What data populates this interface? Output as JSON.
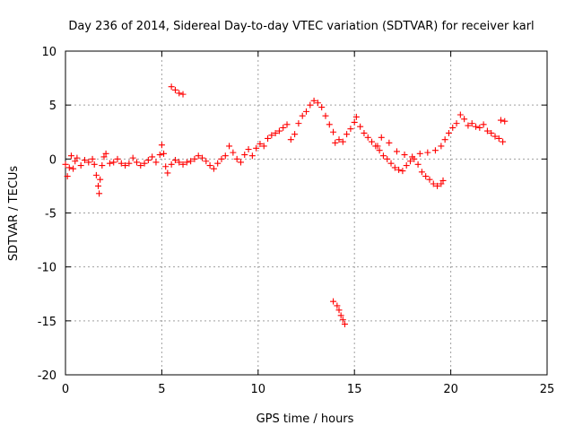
{
  "chart_data": {
    "type": "scatter",
    "title": "Day 236 of 2014, Sidereal Day-to-day VTEC variation (SDTVAR) for receiver karl",
    "xlabel": "GPS time / hours",
    "ylabel": "SDTVAR / TECUs",
    "xlim": [
      0,
      25
    ],
    "ylim": [
      -20,
      10
    ],
    "xticks": [
      0,
      5,
      10,
      15,
      20,
      25
    ],
    "yticks": [
      -20,
      -15,
      -10,
      -5,
      0,
      5,
      10
    ],
    "xtick_labels": [
      "0",
      "5",
      "10",
      "15",
      "20",
      "25"
    ],
    "ytick_labels": [
      "-20",
      "-15",
      "-10",
      "-5",
      "0",
      "5",
      "10"
    ],
    "grid": true,
    "marker": "+",
    "series": [
      {
        "name": "SDTVAR",
        "color": "#ff0000",
        "points": [
          [
            0.0,
            -0.5
          ],
          [
            0.1,
            -1.6
          ],
          [
            0.2,
            -0.8
          ],
          [
            0.3,
            0.3
          ],
          [
            0.4,
            -0.9
          ],
          [
            0.5,
            -0.2
          ],
          [
            0.6,
            0.1
          ],
          [
            0.8,
            -0.6
          ],
          [
            1.0,
            -0.1
          ],
          [
            1.2,
            -0.3
          ],
          [
            1.4,
            0.0
          ],
          [
            1.5,
            -0.5
          ],
          [
            1.6,
            -1.5
          ],
          [
            1.7,
            -2.5
          ],
          [
            1.75,
            -3.2
          ],
          [
            1.8,
            -1.9
          ],
          [
            1.9,
            -0.6
          ],
          [
            2.0,
            0.2
          ],
          [
            2.1,
            0.5
          ],
          [
            2.3,
            -0.4
          ],
          [
            2.5,
            -0.3
          ],
          [
            2.7,
            0.0
          ],
          [
            2.9,
            -0.4
          ],
          [
            3.1,
            -0.6
          ],
          [
            3.3,
            -0.4
          ],
          [
            3.5,
            0.1
          ],
          [
            3.7,
            -0.3
          ],
          [
            3.9,
            -0.6
          ],
          [
            4.1,
            -0.4
          ],
          [
            4.3,
            -0.1
          ],
          [
            4.5,
            0.2
          ],
          [
            4.7,
            -0.3
          ],
          [
            4.9,
            0.4
          ],
          [
            5.0,
            1.3
          ],
          [
            5.1,
            0.5
          ],
          [
            5.2,
            -0.7
          ],
          [
            5.3,
            -1.3
          ],
          [
            5.5,
            -0.5
          ],
          [
            5.7,
            -0.1
          ],
          [
            5.9,
            -0.3
          ],
          [
            6.1,
            -0.5
          ],
          [
            6.3,
            -0.3
          ],
          [
            6.5,
            -0.2
          ],
          [
            6.7,
            0.0
          ],
          [
            6.9,
            0.3
          ],
          [
            7.1,
            0.1
          ],
          [
            7.3,
            -0.2
          ],
          [
            7.5,
            -0.6
          ],
          [
            7.7,
            -0.9
          ],
          [
            7.9,
            -0.4
          ],
          [
            8.1,
            0.0
          ],
          [
            8.3,
            0.3
          ],
          [
            8.5,
            1.2
          ],
          [
            8.7,
            0.6
          ],
          [
            8.9,
            0.0
          ],
          [
            9.1,
            -0.3
          ],
          [
            9.3,
            0.4
          ],
          [
            9.5,
            0.9
          ],
          [
            9.7,
            0.3
          ],
          [
            9.9,
            1.0
          ],
          [
            10.1,
            1.4
          ],
          [
            10.3,
            1.2
          ],
          [
            10.5,
            1.9
          ],
          [
            10.7,
            2.2
          ],
          [
            10.9,
            2.4
          ],
          [
            11.1,
            2.6
          ],
          [
            11.3,
            2.9
          ],
          [
            11.5,
            3.2
          ],
          [
            11.7,
            1.8
          ],
          [
            11.9,
            2.3
          ],
          [
            12.1,
            3.3
          ],
          [
            12.3,
            4.0
          ],
          [
            12.5,
            4.4
          ],
          [
            12.7,
            5.0
          ],
          [
            12.9,
            5.4
          ],
          [
            13.1,
            5.2
          ],
          [
            13.3,
            4.8
          ],
          [
            13.5,
            4.0
          ],
          [
            13.7,
            3.2
          ],
          [
            13.9,
            2.5
          ],
          [
            14.0,
            1.5
          ],
          [
            14.2,
            1.8
          ],
          [
            14.4,
            1.6
          ],
          [
            14.6,
            2.3
          ],
          [
            14.8,
            2.8
          ],
          [
            15.0,
            3.4
          ],
          [
            15.1,
            3.9
          ],
          [
            15.3,
            3.0
          ],
          [
            15.5,
            2.4
          ],
          [
            15.7,
            2.0
          ],
          [
            15.9,
            1.6
          ],
          [
            16.1,
            1.2
          ],
          [
            16.3,
            0.8
          ],
          [
            16.5,
            0.3
          ],
          [
            16.7,
            0.0
          ],
          [
            16.9,
            -0.4
          ],
          [
            17.1,
            -0.8
          ],
          [
            17.3,
            -1.0
          ],
          [
            17.5,
            -1.1
          ],
          [
            17.7,
            -0.6
          ],
          [
            17.9,
            -0.2
          ],
          [
            18.1,
            0.0
          ],
          [
            18.3,
            -0.5
          ],
          [
            18.5,
            -1.2
          ],
          [
            18.7,
            -1.6
          ],
          [
            18.9,
            -1.9
          ],
          [
            19.1,
            -2.3
          ],
          [
            19.3,
            -2.5
          ],
          [
            19.5,
            -2.3
          ],
          [
            19.6,
            -2.0
          ],
          [
            16.2,
            1.2
          ],
          [
            16.4,
            2.0
          ],
          [
            16.8,
            1.5
          ],
          [
            17.2,
            0.7
          ],
          [
            17.6,
            0.4
          ],
          [
            18.0,
            0.2
          ],
          [
            18.4,
            0.5
          ],
          [
            18.8,
            0.6
          ],
          [
            19.2,
            0.8
          ],
          [
            19.5,
            1.2
          ],
          [
            19.7,
            1.8
          ],
          [
            19.9,
            2.4
          ],
          [
            20.1,
            2.9
          ],
          [
            20.3,
            3.3
          ],
          [
            20.5,
            4.1
          ],
          [
            20.7,
            3.7
          ],
          [
            20.9,
            3.1
          ],
          [
            21.1,
            3.3
          ],
          [
            21.3,
            3.0
          ],
          [
            21.5,
            2.9
          ],
          [
            21.7,
            3.2
          ],
          [
            21.9,
            2.6
          ],
          [
            22.1,
            2.4
          ],
          [
            22.3,
            2.1
          ],
          [
            22.5,
            1.9
          ],
          [
            22.7,
            1.6
          ],
          [
            22.8,
            3.5
          ],
          [
            22.6,
            3.6
          ],
          [
            5.5,
            6.7
          ],
          [
            5.7,
            6.4
          ],
          [
            5.9,
            6.1
          ],
          [
            6.1,
            6.0
          ],
          [
            13.9,
            -13.2
          ],
          [
            14.1,
            -13.6
          ],
          [
            14.2,
            -14.0
          ],
          [
            14.3,
            -14.5
          ],
          [
            14.4,
            -14.9
          ],
          [
            14.5,
            -15.3
          ]
        ]
      }
    ]
  }
}
